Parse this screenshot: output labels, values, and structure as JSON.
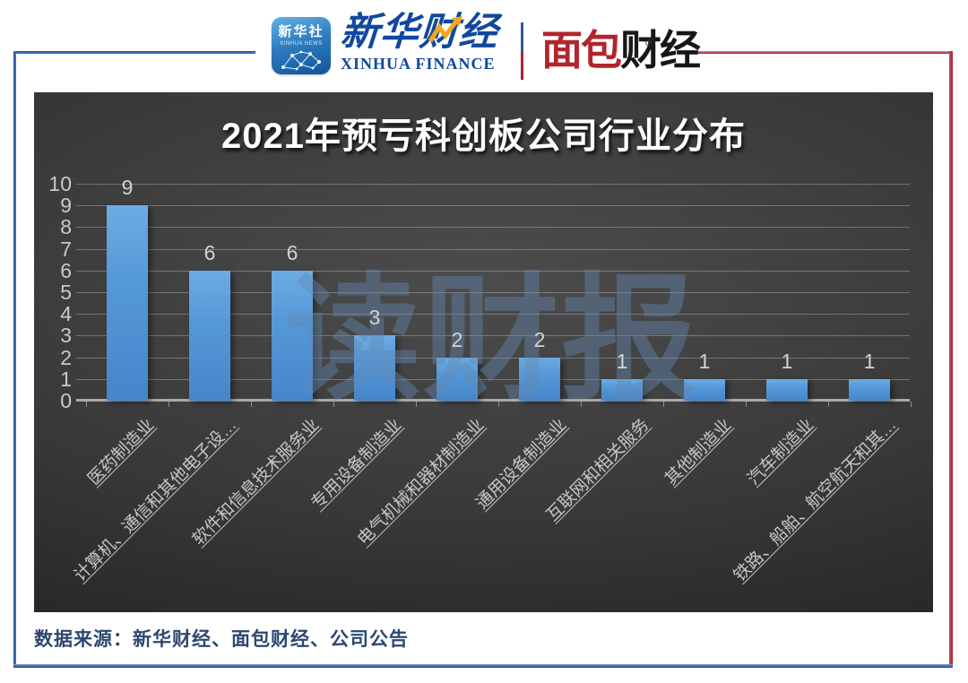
{
  "header": {
    "xinhua_news": {
      "cn": "新华社",
      "en": "XINHUA NEWS"
    },
    "xinhua_finance": {
      "cn": "新华财经",
      "en": "XINHUA FINANCE"
    },
    "bread_finance": {
      "red": "面包",
      "black": "财经",
      "reg": "®"
    }
  },
  "chart_data": {
    "type": "bar",
    "title": "2021年预亏科创板公司行业分布",
    "categories": [
      "医药制造业",
      "计算机、通信和其他电子设…",
      "软件和信息技术服务业",
      "专用设备制造业",
      "电气机械和器材制造业",
      "通用设备制造业",
      "互联网和相关服务",
      "其他制造业",
      "汽车制造业",
      "铁路、船舶、航空航天和其…"
    ],
    "values": [
      9,
      6,
      6,
      3,
      2,
      2,
      1,
      1,
      1,
      1
    ],
    "ylim": [
      0,
      10
    ],
    "yticks": [
      0,
      1,
      2,
      3,
      4,
      5,
      6,
      7,
      8,
      9,
      10
    ],
    "grid": true,
    "xlabel": "",
    "ylabel": "",
    "bar_color": "#5b9bd5",
    "watermark": "读财报"
  },
  "colors": {
    "bar": "#5b9bd5",
    "brand_blue": "#10489e",
    "brand_red": "#b2252d",
    "frame_blue": "#2d5a9e",
    "frame_red": "#a81e2b",
    "source_text": "#2c4770",
    "panel_bg": "#3a3a3a"
  },
  "footer": {
    "source": "数据来源：新华财经、面包财经、公司公告"
  }
}
